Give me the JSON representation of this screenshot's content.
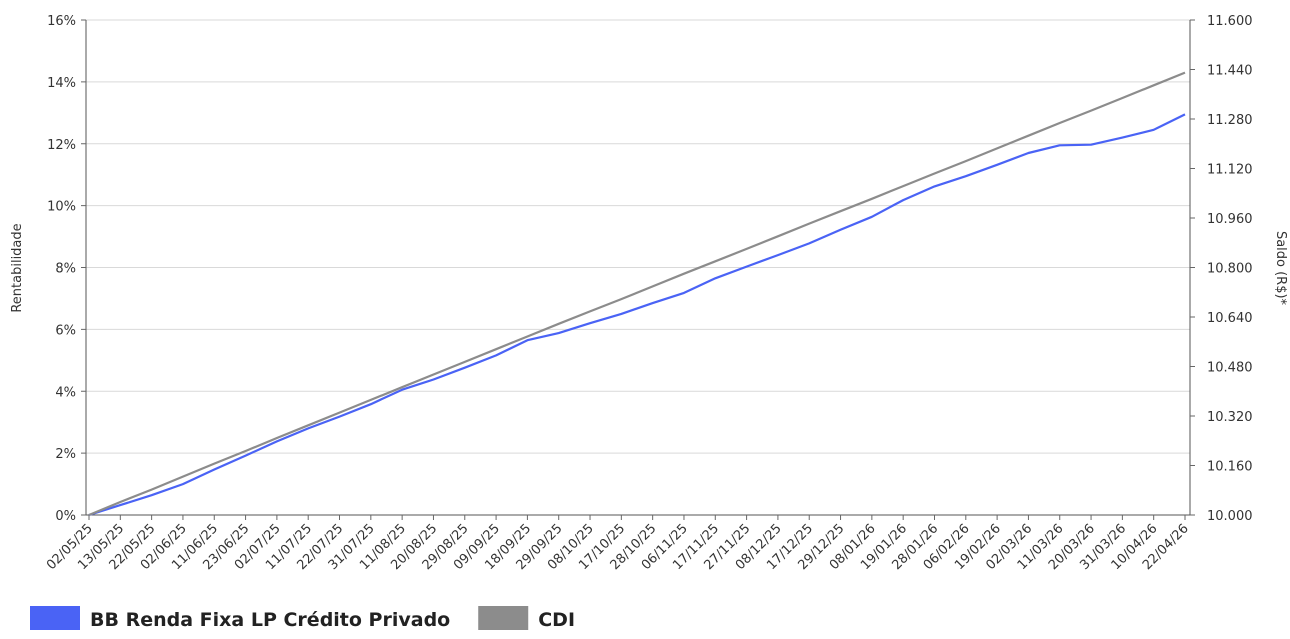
{
  "chart_data": {
    "type": "line",
    "ylabel": "Rentabilidade",
    "y2label": "Saldo (R$)*",
    "ylim": [
      0,
      16
    ],
    "y_ticks": [
      "0%",
      "2%",
      "4%",
      "6%",
      "8%",
      "10%",
      "12%",
      "14%",
      "16%"
    ],
    "y2lim": [
      10000,
      11600
    ],
    "y2_ticks": [
      "10.000",
      "10.160",
      "10.320",
      "10.480",
      "10.640",
      "10.800",
      "10.960",
      "11.120",
      "11.280",
      "11.440",
      "11.600"
    ],
    "grid": true,
    "legend_position": "bottom-left",
    "x_ticks": [
      "02/05/25",
      "13/05/25",
      "22/05/25",
      "02/06/25",
      "11/06/25",
      "23/06/25",
      "02/07/25",
      "11/07/25",
      "22/07/25",
      "31/07/25",
      "11/08/25",
      "20/08/25",
      "29/08/25",
      "09/09/25",
      "18/09/25",
      "29/09/25",
      "08/10/25",
      "17/10/25",
      "28/10/25",
      "06/11/25",
      "17/11/25",
      "27/11/25",
      "08/12/25",
      "17/12/25",
      "29/12/25",
      "08/01/26",
      "19/01/26",
      "28/01/26",
      "06/02/26",
      "19/02/26",
      "02/03/26",
      "11/03/26",
      "20/03/26",
      "31/03/26",
      "10/04/26",
      "22/04/26"
    ],
    "series": [
      {
        "name": "BB Renda Fixa LP Crédito Privado",
        "color": "#4a63f5",
        "values": [
          0.0,
          0.32,
          0.64,
          1.0,
          1.47,
          1.92,
          2.38,
          2.8,
          3.18,
          3.58,
          4.05,
          4.38,
          4.76,
          5.16,
          5.65,
          5.88,
          6.2,
          6.5,
          6.85,
          7.18,
          7.65,
          8.03,
          8.4,
          8.78,
          9.22,
          9.64,
          10.18,
          10.62,
          10.95,
          11.32,
          11.7,
          11.95,
          11.97,
          12.2,
          12.45,
          12.95
        ]
      },
      {
        "name": "CDI",
        "color": "#8c8c8c",
        "values": [
          0.0,
          0.42,
          0.82,
          1.24,
          1.66,
          2.07,
          2.49,
          2.9,
          3.31,
          3.72,
          4.13,
          4.54,
          4.95,
          5.36,
          5.77,
          6.18,
          6.58,
          6.98,
          7.39,
          7.8,
          8.2,
          8.6,
          9.01,
          9.42,
          9.82,
          10.22,
          10.63,
          11.04,
          11.44,
          11.85,
          12.26,
          12.67,
          13.07,
          13.48,
          13.89,
          14.3
        ]
      }
    ]
  }
}
